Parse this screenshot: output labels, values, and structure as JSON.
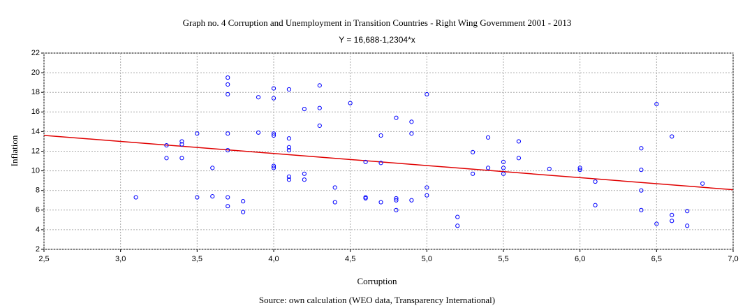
{
  "chart_data": {
    "type": "scatter",
    "title": "Graph no. 4 Corruption and Unemployment in Transition Countries - Right Wing Government 2001 - 2013",
    "subtitle": "Y = 16,688-1,2304*x",
    "x_label": "Corruption",
    "y_label": "Inflation",
    "source": "Source: own calculation (WEO data, Transparency International)",
    "xlim": [
      2.5,
      7.0
    ],
    "ylim": [
      2,
      22
    ],
    "xticks": [
      {
        "value": 2.5,
        "label": "2,5"
      },
      {
        "value": 3.0,
        "label": "3,0"
      },
      {
        "value": 3.5,
        "label": "3,5"
      },
      {
        "value": 4.0,
        "label": "4,0"
      },
      {
        "value": 4.5,
        "label": "4,5"
      },
      {
        "value": 5.0,
        "label": "5,0"
      },
      {
        "value": 5.5,
        "label": "5,5"
      },
      {
        "value": 6.0,
        "label": "6,0"
      },
      {
        "value": 6.5,
        "label": "6,5"
      },
      {
        "value": 7.0,
        "label": "7,0"
      }
    ],
    "yticks": [
      2,
      4,
      6,
      8,
      10,
      12,
      14,
      16,
      18,
      20,
      22
    ],
    "grid": true,
    "color": "#0000ff",
    "fit_line": {
      "intercept": 16.688,
      "slope": -1.2304,
      "color": "#e00000"
    },
    "x": [
      3.1,
      3.3,
      3.3,
      3.4,
      3.4,
      3.4,
      3.5,
      3.5,
      3.6,
      3.6,
      3.7,
      3.7,
      3.7,
      3.7,
      3.7,
      3.7,
      3.7,
      3.8,
      3.8,
      3.9,
      3.9,
      4.0,
      4.0,
      4.0,
      4.0,
      4.0,
      4.0,
      4.1,
      4.1,
      4.1,
      4.1,
      4.1,
      4.1,
      4.2,
      4.2,
      4.2,
      4.3,
      4.3,
      4.3,
      4.4,
      4.4,
      4.5,
      4.6,
      4.6,
      4.6,
      4.7,
      4.7,
      4.7,
      4.8,
      4.8,
      4.8,
      4.8,
      4.9,
      4.9,
      4.9,
      5.0,
      5.0,
      5.0,
      5.2,
      5.2,
      5.3,
      5.3,
      5.4,
      5.4,
      5.5,
      5.5,
      5.5,
      5.6,
      5.6,
      5.8,
      6.0,
      6.0,
      6.1,
      6.1,
      6.4,
      6.4,
      6.4,
      6.4,
      6.5,
      6.5,
      6.6,
      6.6,
      6.6,
      6.7,
      6.7,
      6.8
    ],
    "values": [
      7.3,
      12.6,
      11.3,
      13.0,
      12.7,
      11.3,
      13.8,
      7.3,
      10.3,
      7.4,
      19.5,
      18.8,
      17.8,
      13.8,
      12.1,
      7.3,
      6.4,
      6.9,
      5.8,
      17.5,
      13.9,
      18.4,
      17.4,
      13.8,
      13.6,
      10.5,
      10.3,
      18.3,
      13.3,
      12.4,
      12.1,
      9.4,
      9.1,
      16.3,
      9.7,
      9.1,
      18.7,
      16.4,
      14.6,
      8.3,
      6.8,
      16.9,
      10.9,
      7.3,
      7.2,
      13.6,
      10.8,
      6.8,
      15.4,
      7.2,
      7.0,
      6.0,
      15.0,
      13.8,
      7.0,
      17.8,
      8.3,
      7.5,
      5.3,
      4.4,
      11.9,
      9.7,
      13.4,
      10.3,
      10.9,
      10.3,
      9.7,
      13.0,
      11.3,
      10.2,
      10.3,
      10.1,
      8.9,
      6.5,
      12.3,
      10.1,
      8.0,
      6.0,
      16.8,
      4.6,
      13.5,
      5.5,
      4.9,
      5.9,
      4.4,
      8.7
    ]
  }
}
